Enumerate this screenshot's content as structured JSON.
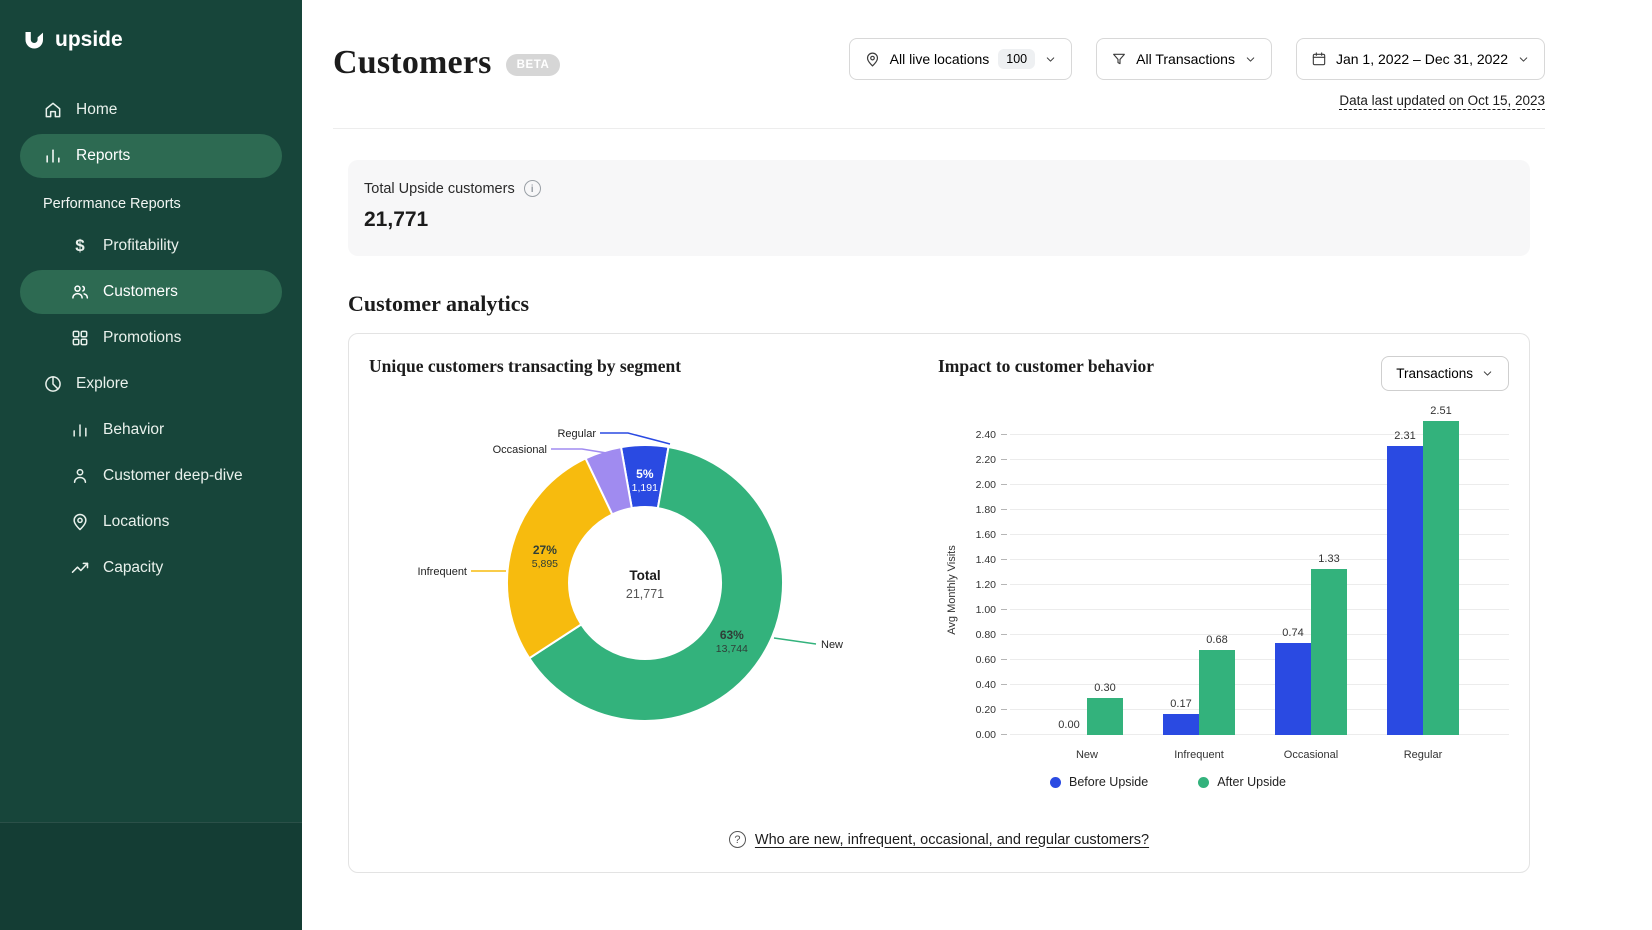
{
  "brand": {
    "name": "upside",
    "logo_icon": "upside-logo-icon"
  },
  "sidebar": {
    "items": [
      {
        "label": "Home",
        "icon": "home-icon",
        "level": 0,
        "active": false
      },
      {
        "label": "Reports",
        "icon": "reports-icon",
        "level": 0,
        "active": true
      },
      {
        "label": "Performance Reports",
        "type": "heading"
      },
      {
        "label": "Profitability",
        "icon": "dollar-icon",
        "level": 1,
        "active": false
      },
      {
        "label": "Customers",
        "icon": "customers-icon",
        "level": 1,
        "active": true
      },
      {
        "label": "Promotions",
        "icon": "promotions-grid-icon",
        "level": 1,
        "active": false
      },
      {
        "label": "Explore",
        "icon": "pie-icon",
        "level": 0,
        "active": false
      },
      {
        "label": "Behavior",
        "icon": "bar-chart-icon",
        "level": 1,
        "active": false
      },
      {
        "label": "Customer deep-dive",
        "icon": "person-icon",
        "level": 1,
        "active": false
      },
      {
        "label": "Locations",
        "icon": "location-pin-icon",
        "level": 1,
        "active": false
      },
      {
        "label": "Capacity",
        "icon": "trend-up-icon",
        "level": 1,
        "active": false
      }
    ]
  },
  "header": {
    "title": "Customers",
    "beta_badge": "BETA",
    "last_updated": "Data last updated on Oct 15, 2023",
    "filters": {
      "locations": {
        "icon": "location-pin-icon",
        "label": "All live locations",
        "count": "100"
      },
      "transactions": {
        "icon": "filter-icon",
        "label": "All Transactions"
      },
      "date_range": {
        "icon": "calendar-icon",
        "label": "Jan 1, 2022 – Dec 31, 2022"
      }
    }
  },
  "summary_card": {
    "label": "Total Upside customers",
    "value": "21,771"
  },
  "analytics": {
    "section_title": "Customer analytics",
    "metric_selector": "Transactions",
    "footnote_link": "Who are new, infrequent, occasional, and regular customers?"
  },
  "chart_data": [
    {
      "type": "pie",
      "style": "donut",
      "title": "Unique customers transacting by segment",
      "center": {
        "label": "Total",
        "value": "21,771"
      },
      "start_angle_deg": -10,
      "segments": [
        {
          "label": "Regular",
          "percent": "5%",
          "value": "1,191",
          "share": 5.5,
          "color": "#2a4ae2",
          "label_color": "#ffffff"
        },
        {
          "label": "New",
          "percent": "63%",
          "value": "13,744",
          "share": 63.1,
          "color": "#33b27c",
          "label_color": "#2f3e37"
        },
        {
          "label": "Infrequent",
          "percent": "27%",
          "value": "5,895",
          "share": 27.1,
          "color": "#f7bb0e",
          "label_color": "#2f3e37"
        },
        {
          "label": "Occasional",
          "share": 4.3,
          "color": "#a08bf0"
        }
      ]
    },
    {
      "type": "bar",
      "title": "Impact to customer behavior",
      "categories": [
        "New",
        "Infrequent",
        "Occasional",
        "Regular"
      ],
      "series": [
        {
          "name": "Before Upside",
          "color": "#2a4ae2",
          "values": [
            0.0,
            0.17,
            0.74,
            2.31
          ]
        },
        {
          "name": "After Upside",
          "color": "#33b27c",
          "values": [
            0.3,
            0.68,
            1.33,
            2.51
          ]
        }
      ],
      "ylabel": "Avg Monthly Visits",
      "ylim": [
        0,
        2.4
      ],
      "ytick_step": 0.2,
      "grid": true,
      "legend_position": "bottom",
      "value_labels_decimals": 2
    }
  ]
}
